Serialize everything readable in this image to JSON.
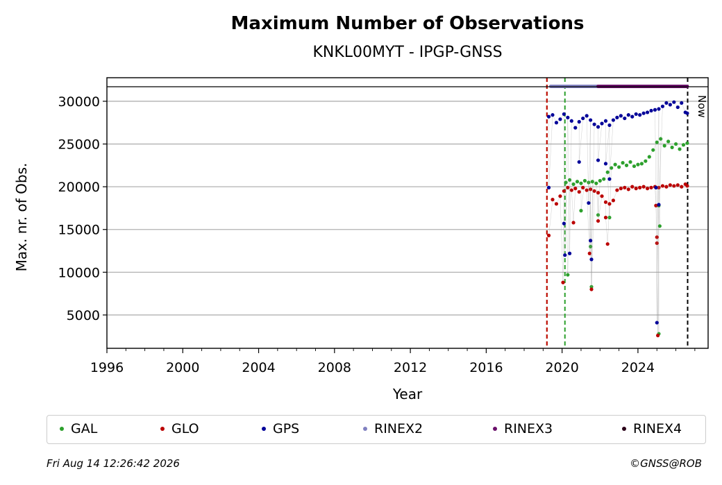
{
  "chart_data": {
    "type": "scatter",
    "title": "Maximum Number of Observations",
    "subtitle": "KNKL00MYT - IPGP-GNSS",
    "xlabel": "Year",
    "ylabel": "Max. nr. of Obs.",
    "xlim": [
      1996,
      2027.7
    ],
    "ylim": [
      1100,
      31700
    ],
    "xticks": [
      1996,
      2000,
      2004,
      2008,
      2012,
      2016,
      2020,
      2024
    ],
    "yticks": [
      5000,
      10000,
      15000,
      20000,
      25000,
      30000
    ],
    "grid": "horizontal",
    "now_label": "Now",
    "vlines": [
      {
        "x": 2019.2,
        "color": "#2ca02c"
      },
      {
        "x": 2019.2,
        "color": "#cc0000"
      },
      {
        "x": 2020.15,
        "color": "#2ca02c"
      },
      {
        "x": 2026.62,
        "color": "#000000"
      }
    ],
    "rinex_strip": [
      {
        "name": "RINEX2",
        "color": "#8080c0",
        "start": 2019.4,
        "end": 2021.9
      },
      {
        "name": "RINEX3",
        "color": "#6a0f6a",
        "start": 2021.9,
        "end": 2026.6
      }
    ],
    "series": [
      {
        "name": "GAL",
        "color": "#2ca02c",
        "points": [
          [
            2020.2,
            20500
          ],
          [
            2020.4,
            20800
          ],
          [
            2020.6,
            20300
          ],
          [
            2020.8,
            20600
          ],
          [
            2021.0,
            20400
          ],
          [
            2021.2,
            20700
          ],
          [
            2021.4,
            20500
          ],
          [
            2021.6,
            20600
          ],
          [
            2021.8,
            20400
          ],
          [
            2022.0,
            20700
          ],
          [
            2022.2,
            20900
          ],
          [
            2022.4,
            21700
          ],
          [
            2022.6,
            22200
          ],
          [
            2022.8,
            22600
          ],
          [
            2023.0,
            22300
          ],
          [
            2023.2,
            22800
          ],
          [
            2023.4,
            22500
          ],
          [
            2023.6,
            22900
          ],
          [
            2023.8,
            22400
          ],
          [
            2024.0,
            22600
          ],
          [
            2024.2,
            22700
          ],
          [
            2024.4,
            23000
          ],
          [
            2024.6,
            23500
          ],
          [
            2024.8,
            24300
          ],
          [
            2025.0,
            25200
          ],
          [
            2025.2,
            25600
          ],
          [
            2025.4,
            24800
          ],
          [
            2025.6,
            25300
          ],
          [
            2025.8,
            24600
          ],
          [
            2026.0,
            25000
          ],
          [
            2026.2,
            24400
          ],
          [
            2026.4,
            24900
          ],
          [
            2026.6,
            25100
          ],
          [
            2020.3,
            9700
          ],
          [
            2021.0,
            17200
          ],
          [
            2021.5,
            13000
          ],
          [
            2021.55,
            8300
          ],
          [
            2021.9,
            16700
          ],
          [
            2022.5,
            16400
          ],
          [
            2025.1,
            2800
          ],
          [
            2025.15,
            15400
          ],
          [
            2025.1,
            17800
          ]
        ]
      },
      {
        "name": "GLO",
        "color": "#bb0000",
        "points": [
          [
            2019.3,
            14300
          ],
          [
            2019.5,
            18500
          ],
          [
            2019.7,
            18000
          ],
          [
            2019.9,
            18900
          ],
          [
            2020.1,
            19500
          ],
          [
            2020.3,
            19900
          ],
          [
            2020.5,
            19600
          ],
          [
            2020.7,
            19800
          ],
          [
            2020.9,
            19400
          ],
          [
            2021.1,
            19900
          ],
          [
            2021.3,
            19600
          ],
          [
            2021.5,
            19700
          ],
          [
            2021.7,
            19500
          ],
          [
            2021.9,
            19300
          ],
          [
            2022.1,
            18900
          ],
          [
            2022.3,
            18200
          ],
          [
            2022.5,
            18000
          ],
          [
            2022.7,
            18400
          ],
          [
            2022.9,
            19600
          ],
          [
            2023.1,
            19800
          ],
          [
            2023.3,
            19900
          ],
          [
            2023.5,
            19700
          ],
          [
            2023.7,
            20000
          ],
          [
            2023.9,
            19800
          ],
          [
            2024.1,
            19900
          ],
          [
            2024.3,
            20000
          ],
          [
            2024.5,
            19800
          ],
          [
            2024.7,
            19900
          ],
          [
            2024.9,
            20000
          ],
          [
            2025.1,
            19900
          ],
          [
            2025.3,
            20100
          ],
          [
            2025.5,
            20000
          ],
          [
            2025.7,
            20200
          ],
          [
            2025.9,
            20100
          ],
          [
            2026.1,
            20200
          ],
          [
            2026.3,
            20000
          ],
          [
            2026.5,
            20300
          ],
          [
            2026.6,
            20100
          ],
          [
            2020.05,
            8800
          ],
          [
            2020.6,
            15800
          ],
          [
            2021.45,
            12200
          ],
          [
            2021.55,
            8000
          ],
          [
            2021.9,
            16000
          ],
          [
            2022.3,
            16400
          ],
          [
            2022.4,
            13300
          ],
          [
            2025.0,
            14100
          ],
          [
            2025.0,
            13400
          ],
          [
            2025.05,
            2600
          ],
          [
            2024.95,
            17800
          ]
        ]
      },
      {
        "name": "GPS",
        "color": "#000099",
        "points": [
          [
            2019.3,
            28200
          ],
          [
            2019.5,
            28400
          ],
          [
            2019.7,
            27500
          ],
          [
            2019.9,
            27900
          ],
          [
            2020.1,
            28500
          ],
          [
            2020.3,
            28100
          ],
          [
            2020.5,
            27700
          ],
          [
            2020.7,
            26900
          ],
          [
            2020.9,
            27600
          ],
          [
            2021.1,
            28000
          ],
          [
            2021.3,
            28300
          ],
          [
            2021.5,
            27800
          ],
          [
            2021.7,
            27300
          ],
          [
            2021.9,
            27000
          ],
          [
            2022.1,
            27400
          ],
          [
            2022.3,
            27700
          ],
          [
            2022.5,
            27200
          ],
          [
            2022.7,
            27800
          ],
          [
            2022.9,
            28100
          ],
          [
            2023.1,
            28300
          ],
          [
            2023.3,
            28000
          ],
          [
            2023.5,
            28400
          ],
          [
            2023.7,
            28200
          ],
          [
            2023.9,
            28500
          ],
          [
            2024.1,
            28400
          ],
          [
            2024.3,
            28600
          ],
          [
            2024.5,
            28700
          ],
          [
            2024.7,
            28900
          ],
          [
            2024.9,
            29000
          ],
          [
            2025.1,
            29100
          ],
          [
            2025.3,
            29400
          ],
          [
            2025.5,
            29800
          ],
          [
            2025.7,
            29600
          ],
          [
            2025.9,
            29900
          ],
          [
            2026.1,
            29300
          ],
          [
            2026.3,
            29800
          ],
          [
            2026.5,
            28700
          ],
          [
            2026.6,
            28600
          ],
          [
            2019.3,
            19900
          ],
          [
            2020.1,
            15700
          ],
          [
            2020.15,
            12000
          ],
          [
            2020.4,
            12200
          ],
          [
            2020.9,
            22900
          ],
          [
            2021.4,
            18100
          ],
          [
            2021.5,
            13700
          ],
          [
            2021.55,
            11500
          ],
          [
            2021.9,
            23100
          ],
          [
            2022.3,
            22700
          ],
          [
            2022.5,
            20900
          ],
          [
            2024.95,
            19900
          ],
          [
            2025.0,
            4100
          ],
          [
            2025.1,
            17900
          ]
        ]
      }
    ],
    "legend": [
      {
        "name": "GAL",
        "color": "#2ca02c"
      },
      {
        "name": "GLO",
        "color": "#bb0000"
      },
      {
        "name": "GPS",
        "color": "#000099"
      },
      {
        "name": "RINEX2",
        "color": "#8080c0"
      },
      {
        "name": "RINEX3",
        "color": "#6a0f6a"
      },
      {
        "name": "RINEX4",
        "color": "#2a0018"
      }
    ],
    "legend_position": "below"
  },
  "footer": {
    "timestamp": "Fri Aug 14 12:26:42 2026",
    "credit": "©GNSS@ROB"
  }
}
